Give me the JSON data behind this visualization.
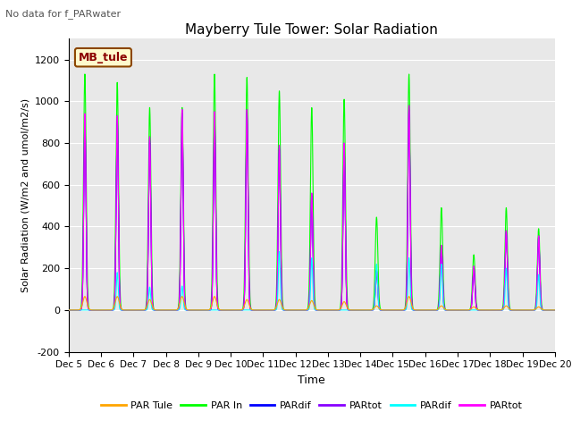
{
  "title": "Mayberry Tule Tower: Solar Radiation",
  "subtitle": "No data for f_PARwater",
  "ylabel": "Solar Radiation (W/m2 and umol/m2/s)",
  "xlabel": "Time",
  "legend_label": "MB_tule",
  "ylim": [
    -200,
    1300
  ],
  "yticks": [
    -200,
    0,
    200,
    400,
    600,
    800,
    1000,
    1200
  ],
  "xtick_labels": [
    "Dec 5",
    "Dec 6",
    "Dec 7",
    "Dec 8",
    "Dec 9",
    "Dec 10",
    "Dec 11",
    "Dec 12",
    "Dec 13",
    "Dec 14",
    "Dec 15",
    "Dec 16",
    "Dec 17",
    "Dec 18",
    "Dec 19",
    "Dec 20"
  ],
  "series_colors": {
    "PAR_Tule": "#FFA500",
    "PAR_In": "#00FF00",
    "PARdif_blue": "#0000FF",
    "PARtot_purple": "#8800FF",
    "PARdif_cyan": "#00FFFF",
    "PARtot_magenta": "#FF00FF"
  },
  "legend_entries": [
    {
      "label": "PAR Tule",
      "color": "#FFA500"
    },
    {
      "label": "PAR In",
      "color": "#00FF00"
    },
    {
      "label": "PARdif",
      "color": "#0000FF"
    },
    {
      "label": "PARtot",
      "color": "#8800FF"
    },
    {
      "label": "PARdif",
      "color": "#00FFFF"
    },
    {
      "label": "PARtot",
      "color": "#FF00FF"
    }
  ],
  "plot_bg_color": "#E8E8E8",
  "n_days": 15,
  "peak_heights_green": [
    1130,
    1090,
    970,
    970,
    1130,
    1115,
    1050,
    970,
    1010,
    445,
    1130,
    490,
    265,
    490,
    390
  ],
  "peak_heights_magenta": [
    940,
    930,
    830,
    960,
    950,
    960,
    790,
    560,
    800,
    190,
    980,
    310,
    210,
    380,
    355
  ],
  "peak_heights_orange": [
    65,
    65,
    50,
    65,
    65,
    50,
    50,
    45,
    40,
    20,
    65,
    20,
    15,
    20,
    15
  ],
  "peak_heights_cyan": [
    0,
    180,
    110,
    115,
    0,
    0,
    280,
    250,
    0,
    220,
    250,
    220,
    0,
    200,
    170
  ],
  "figsize": [
    6.4,
    4.8
  ],
  "dpi": 100
}
